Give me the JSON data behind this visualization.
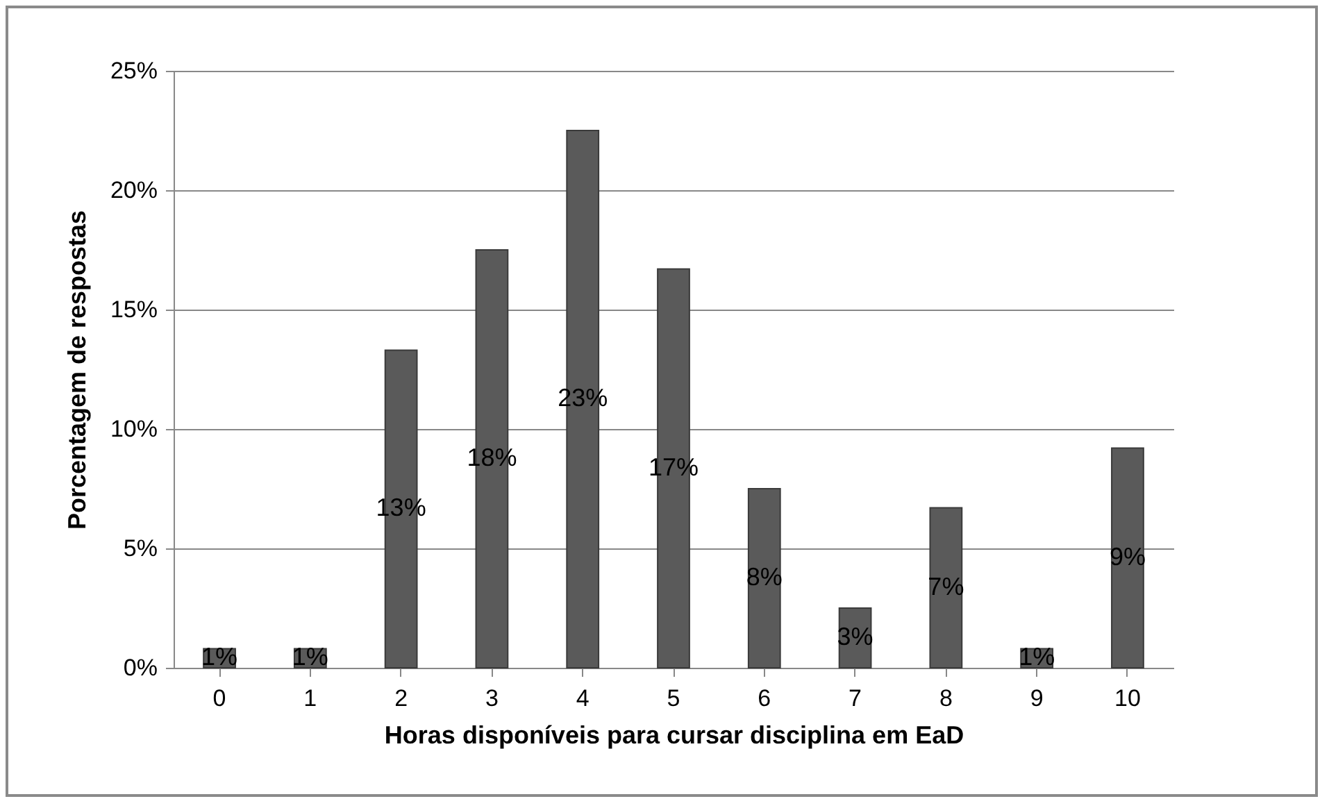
{
  "chart_data": {
    "type": "bar",
    "xlabel": "Horas disponíveis para cursar disciplina em EaD",
    "ylabel": "Porcentagem de respostas",
    "categories": [
      "0",
      "1",
      "2",
      "3",
      "4",
      "5",
      "6",
      "7",
      "8",
      "9",
      "10"
    ],
    "values": [
      0.8,
      0.8,
      13.3,
      17.5,
      22.5,
      16.7,
      7.5,
      2.5,
      6.7,
      0.8,
      9.2
    ],
    "value_labels": [
      "1%",
      "1%",
      "13%",
      "18%",
      "23%",
      "17%",
      "8%",
      "3%",
      "7%",
      "1%",
      "9%"
    ],
    "color": "#5a5a5a",
    "ylim": [
      0,
      25
    ],
    "yticks": [
      {
        "value": 0,
        "label": "0%"
      },
      {
        "value": 5,
        "label": "5%"
      },
      {
        "value": 10,
        "label": "10%"
      },
      {
        "value": 15,
        "label": "15%"
      },
      {
        "value": 20,
        "label": "20%"
      },
      {
        "value": 25,
        "label": "25%"
      }
    ],
    "grid": "y"
  }
}
